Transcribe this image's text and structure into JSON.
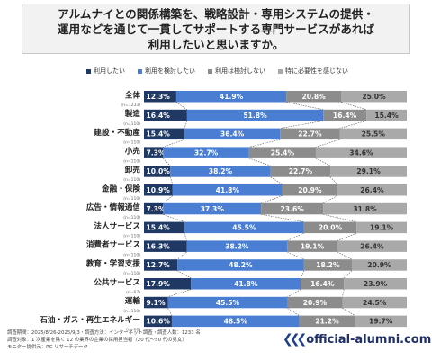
{
  "title_lines": [
    "アルムナイとの関係構築を、戦略設計・専用システムの提供・",
    "運用などを通じて一貫してサポートする専門サービスがあれば",
    "利用したいと思いますか。"
  ],
  "legend": [
    {
      "label": "利用したい",
      "color": "#1f3864"
    },
    {
      "label": "利用を検討したい",
      "color": "#4a7ed3"
    },
    {
      "label": "利用は検討しない",
      "color": "#8c8c8c"
    },
    {
      "label": "特に必要性を感じない",
      "color": "#a9a9a9"
    }
  ],
  "chart_data": {
    "type": "bar",
    "orientation": "horizontal",
    "stacked": true,
    "xlim": [
      0,
      100
    ],
    "unit": "%",
    "categories": [
      "全体",
      "製造",
      "建設・不動産",
      "小売",
      "卸売",
      "金融・保険",
      "広告・情報通信",
      "法人サービス",
      "消費者サービス",
      "教育・学習支援",
      "公共サービス",
      "運輸",
      "石油・ガス・再生エネルギー"
    ],
    "n_labels": [
      "(n=1233)",
      "(n=110)",
      "(n=110)",
      "(n=110)",
      "(n=110)",
      "(n=110)",
      "(n=110)",
      "(n=110)",
      "(n=110)",
      "(n=110)",
      "(n=67)",
      "(n=110)",
      "(n=66)"
    ],
    "series": [
      {
        "name": "利用したい",
        "color": "#1f3864",
        "values": [
          12.3,
          16.4,
          15.4,
          7.3,
          10.0,
          10.9,
          7.3,
          15.4,
          16.3,
          12.7,
          17.9,
          9.1,
          10.6
        ]
      },
      {
        "name": "利用を検討したい",
        "color": "#4a7ed3",
        "values": [
          41.9,
          51.8,
          36.4,
          32.7,
          38.2,
          41.8,
          37.3,
          45.5,
          38.2,
          48.2,
          41.8,
          45.5,
          48.5
        ]
      },
      {
        "name": "利用は検討しない",
        "color": "#8c8c8c",
        "values": [
          20.8,
          16.4,
          22.7,
          25.4,
          22.7,
          20.9,
          23.6,
          20.0,
          19.1,
          18.2,
          16.4,
          20.9,
          21.2
        ]
      },
      {
        "name": "特に必要性を感じない",
        "color": "#a9a9a9",
        "values": [
          25.0,
          15.4,
          25.5,
          34.6,
          29.1,
          26.4,
          31.8,
          19.1,
          26.4,
          20.9,
          23.9,
          24.5,
          19.7
        ]
      }
    ],
    "value_labels": [
      [
        "12.3%",
        "41.9%",
        "20.8%",
        "25.0%"
      ],
      [
        "16.4%",
        "51.8%",
        "16.4%",
        "15.4%"
      ],
      [
        "15.4%",
        "36.4%",
        "22.7%",
        "25.5%"
      ],
      [
        "7.3%",
        "32.7%",
        "25.4%",
        "34.6%"
      ],
      [
        "10.0%",
        "38.2%",
        "22.7%",
        "29.1%"
      ],
      [
        "10.9%",
        "41.8%",
        "20.9%",
        "26.4%"
      ],
      [
        "7.3%",
        "37.3%",
        "23.6%",
        "31.8%"
      ],
      [
        "15.4%",
        "45.5%",
        "20.0%",
        "19.1%"
      ],
      [
        "16.3%",
        "38.2%",
        "19.1%",
        "26.4%"
      ],
      [
        "12.7%",
        "48.2%",
        "18.2%",
        "20.9%"
      ],
      [
        "17.9%",
        "41.8%",
        "16.4%",
        "23.9%"
      ],
      [
        "9.1%",
        "45.5%",
        "20.9%",
        "24.5%"
      ],
      [
        "10.6%",
        "48.5%",
        "21.2%",
        "19.7%"
      ]
    ],
    "connector_lines": "dashed"
  },
  "footer_lines": [
    "調査期間：2025/8/26-2025/9/3・調査方法：インターネット調査・調査人数：1233 名",
    "調査対象：1 次産業を除く 12 の業界の企業の採用担当者（20 代～50 代の男女）",
    "モニター提供元：RC リサーチデータ"
  ],
  "brand": {
    "mark": "❮❮❮",
    "text": "official-alumni.com"
  }
}
